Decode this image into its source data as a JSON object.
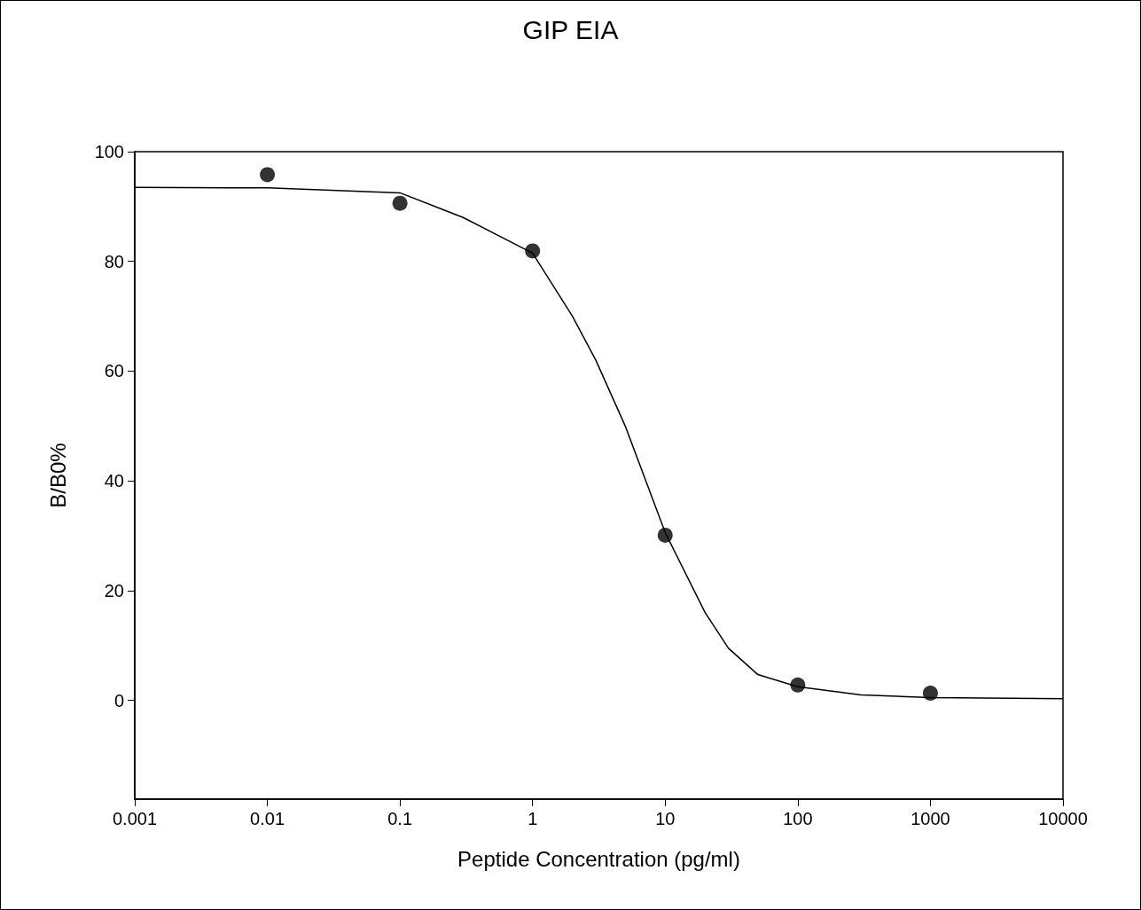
{
  "chart_data": {
    "type": "scatter",
    "title": "GIP EIA",
    "xlabel": "Peptide Concentration (pg/ml)",
    "ylabel": "B/B0%",
    "log": "x",
    "grid": false,
    "xlim": [
      0.001,
      10000
    ],
    "xticks": [
      0.001,
      0.01,
      0.1,
      1,
      10,
      100,
      1000,
      10000
    ],
    "ylim": [
      -18,
      100
    ],
    "yticks": [
      0,
      20,
      40,
      60,
      80,
      100
    ],
    "series": [
      {
        "marker": "circle",
        "color": "#000000",
        "x": [
          0.01,
          0.1,
          1,
          10,
          100,
          1000
        ],
        "values": [
          95.8,
          90.6,
          81.9,
          30.1,
          2.8,
          1.3
        ]
      },
      {
        "type": "line",
        "marker": "none",
        "line_style": "solid",
        "color": "#000000",
        "x": [
          0.001,
          0.01,
          0.1,
          0.3,
          1,
          2,
          3,
          5,
          10,
          20,
          30,
          50,
          100,
          300,
          1000,
          10000
        ],
        "values": [
          93.5,
          93.4,
          92.5,
          88,
          81.5,
          70,
          62,
          50,
          30.6,
          16,
          9.5,
          4.7,
          2.5,
          1,
          0.5,
          0.3
        ]
      }
    ]
  }
}
